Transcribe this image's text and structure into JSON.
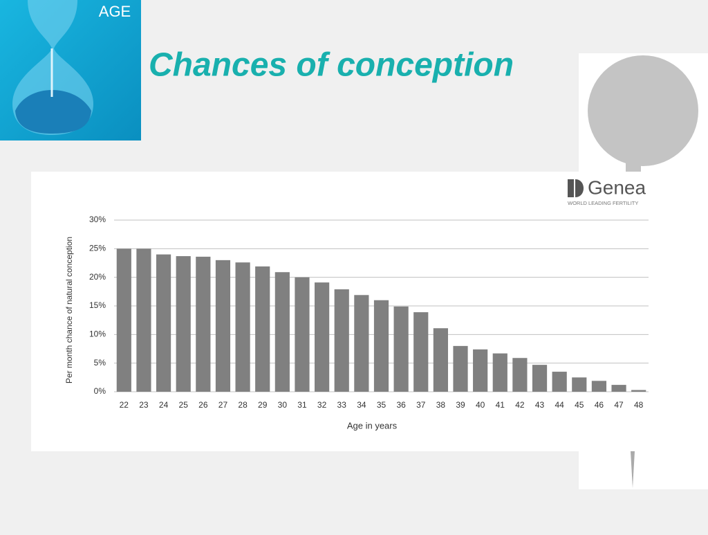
{
  "slide_label": "AGE",
  "logo": {
    "name": "Genea",
    "tagline": "WORLD LEADING FERTILITY"
  },
  "chart_data": {
    "type": "bar",
    "title": "Chances of conception",
    "x_label": "Age in years",
    "y_label": "Per month chance of natural conception",
    "categories": [
      "22",
      "23",
      "24",
      "25",
      "26",
      "27",
      "28",
      "29",
      "30",
      "31",
      "32",
      "33",
      "34",
      "35",
      "36",
      "37",
      "38",
      "39",
      "40",
      "41",
      "42",
      "43",
      "44",
      "45",
      "46",
      "47",
      "48"
    ],
    "values": [
      25,
      25,
      24,
      23.7,
      23.6,
      23,
      22.6,
      21.9,
      20.9,
      20,
      19.1,
      17.9,
      16.9,
      16,
      14.9,
      13.9,
      11.1,
      8,
      7.4,
      6.7,
      5.9,
      4.7,
      3.5,
      2.5,
      1.9,
      1.2,
      0.3
    ],
    "color": "#808080",
    "ylim": [
      0,
      30
    ],
    "yticks": [
      {
        "value": 0,
        "label": "0%"
      },
      {
        "value": 5,
        "label": "5%"
      },
      {
        "value": 10,
        "label": "10%"
      },
      {
        "value": 15,
        "label": "15%"
      },
      {
        "value": 20,
        "label": "20%"
      },
      {
        "value": 25,
        "label": "25%"
      },
      {
        "value": 30,
        "label": "30%"
      }
    ],
    "grid": true
  }
}
